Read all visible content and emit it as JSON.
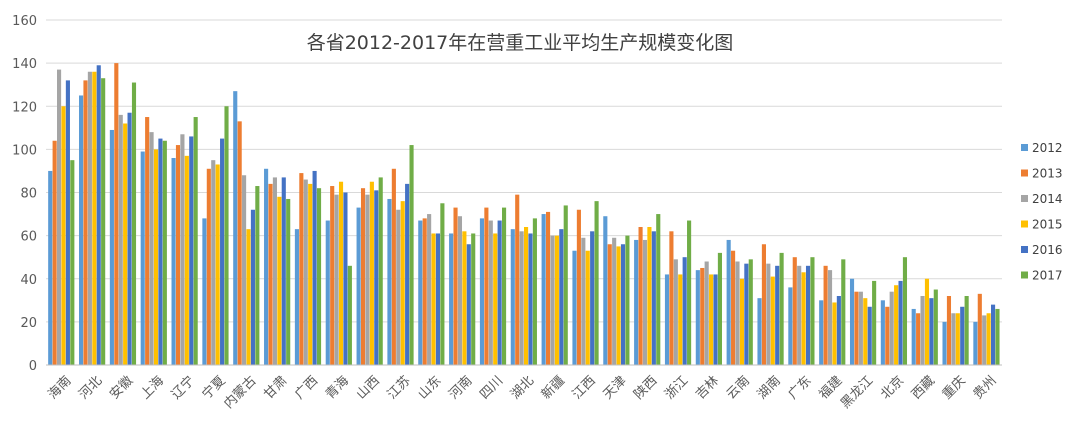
{
  "chart_data": {
    "type": "bar",
    "title": "各省2012-2017年在营重工业平均生产规模变化图",
    "xlabel": "",
    "ylabel": "",
    "ylim": [
      0,
      160
    ],
    "yticks": [
      0,
      20,
      40,
      60,
      80,
      100,
      120,
      140,
      160
    ],
    "grid": true,
    "legend_position": "right",
    "categories": [
      "海南",
      "河北",
      "安徽",
      "上海",
      "辽宁",
      "宁夏",
      "内蒙古",
      "甘肃",
      "广西",
      "青海",
      "山西",
      "江苏",
      "山东",
      "河南",
      "四川",
      "湖北",
      "新疆",
      "江西",
      "天津",
      "陕西",
      "浙江",
      "吉林",
      "云南",
      "湖南",
      "广东",
      "福建",
      "黑龙江",
      "北京",
      "西藏",
      "重庆",
      "贵州"
    ],
    "series": [
      {
        "name": "2012",
        "color": "#5B9BD5",
        "values": [
          90,
          125,
          109,
          99,
          96,
          68,
          127,
          91,
          63,
          67,
          73,
          77,
          67,
          61,
          68,
          63,
          70,
          53,
          69,
          58,
          42,
          44,
          58,
          31,
          36,
          30,
          40,
          30,
          26,
          20,
          20
        ]
      },
      {
        "name": "2013",
        "color": "#ED7D31",
        "values": [
          104,
          132,
          140,
          115,
          102,
          91,
          113,
          84,
          89,
          83,
          82,
          91,
          68,
          73,
          73,
          79,
          71,
          72,
          56,
          64,
          62,
          45,
          53,
          56,
          50,
          46,
          34,
          27,
          24,
          32,
          33
        ]
      },
      {
        "name": "2014",
        "color": "#A5A5A5",
        "values": [
          137,
          136,
          116,
          108,
          107,
          95,
          88,
          87,
          86,
          79,
          79,
          72,
          70,
          69,
          67,
          62,
          60,
          59,
          59,
          58,
          49,
          48,
          48,
          47,
          46,
          44,
          34,
          34,
          32,
          24,
          23
        ]
      },
      {
        "name": "2015",
        "color": "#FFC000",
        "values": [
          120,
          136,
          112,
          100,
          97,
          93,
          63,
          78,
          84,
          85,
          85,
          76,
          61,
          62,
          61,
          64,
          60,
          53,
          55,
          64,
          42,
          42,
          40,
          41,
          43,
          29,
          31,
          37,
          40,
          24,
          24
        ]
      },
      {
        "name": "2016",
        "color": "#4472C4",
        "values": [
          132,
          139,
          117,
          105,
          106,
          105,
          72,
          87,
          90,
          80,
          81,
          84,
          61,
          56,
          67,
          61,
          63,
          62,
          56,
          62,
          50,
          42,
          47,
          46,
          46,
          32,
          27,
          39,
          31,
          27,
          28
        ]
      },
      {
        "name": "2017",
        "color": "#70AD47",
        "values": [
          95,
          133,
          131,
          104,
          115,
          120,
          83,
          77,
          82,
          46,
          87,
          102,
          75,
          61,
          73,
          68,
          74,
          76,
          60,
          70,
          67,
          52,
          49,
          52,
          50,
          49,
          39,
          50,
          35,
          32,
          26
        ]
      }
    ]
  }
}
